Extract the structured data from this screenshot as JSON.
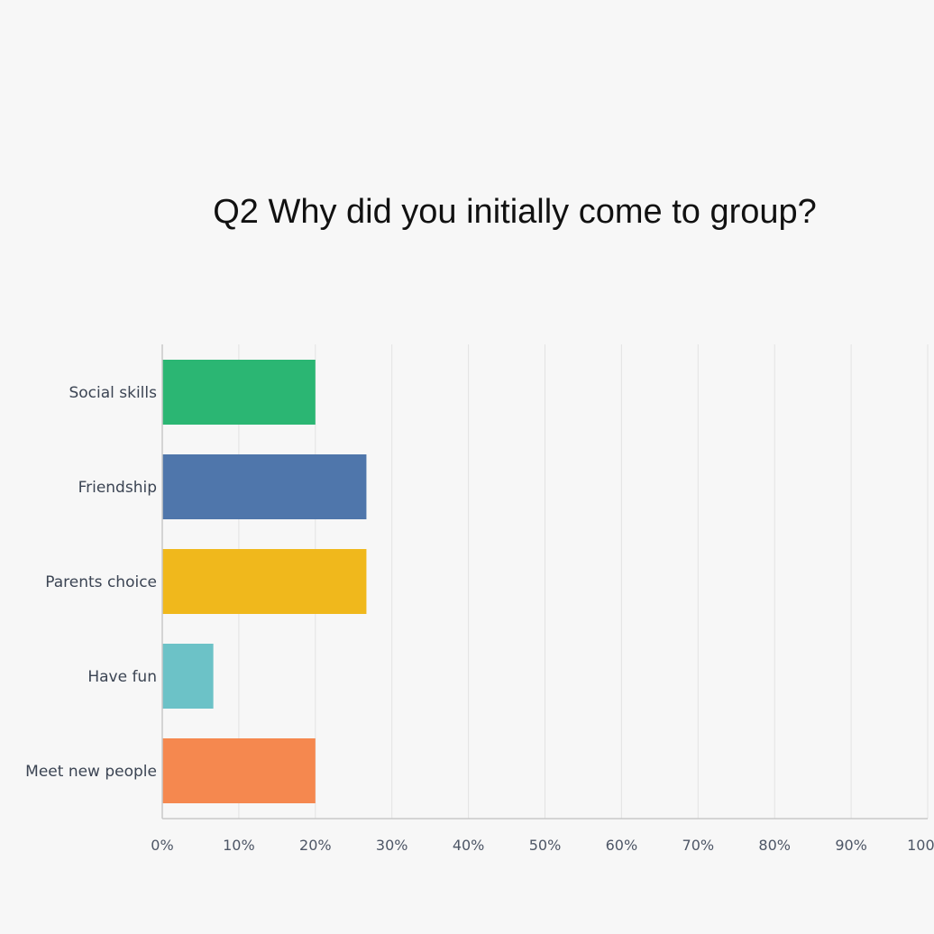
{
  "chart_data": {
    "type": "bar",
    "orientation": "horizontal",
    "title": "Q2 Why did you initially come to group?",
    "categories": [
      "Social skills",
      "Friendship",
      "Parents choice",
      "Have fun",
      "Meet new people"
    ],
    "values": [
      20,
      26.67,
      26.67,
      6.67,
      20
    ],
    "colors": [
      "#2bb673",
      "#4f76ab",
      "#f0b81c",
      "#6cc2c7",
      "#f5884f"
    ],
    "xlim": [
      0,
      100
    ],
    "x_ticks": [
      0,
      10,
      20,
      30,
      40,
      50,
      60,
      70,
      80,
      90,
      100
    ],
    "x_tick_labels": [
      "0%",
      "10%",
      "20%",
      "30%",
      "40%",
      "50%",
      "60%",
      "70%",
      "80%",
      "90%",
      "100%"
    ],
    "grid": true,
    "legend": "none"
  }
}
